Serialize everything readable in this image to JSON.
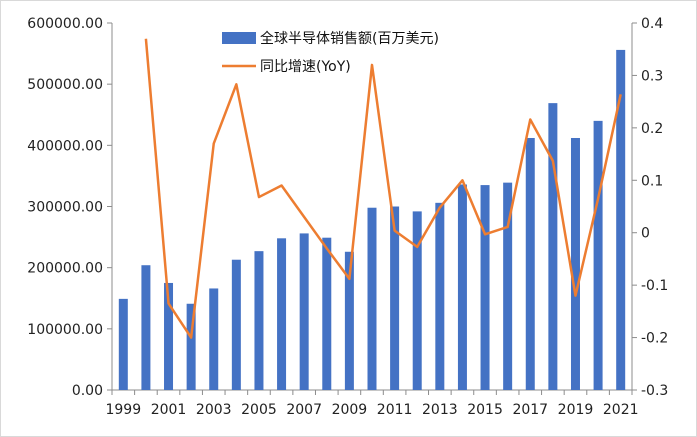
{
  "chart_data": {
    "type": "bar",
    "x": [
      1999,
      2000,
      2001,
      2002,
      2003,
      2004,
      2005,
      2006,
      2007,
      2008,
      2009,
      2010,
      2011,
      2012,
      2013,
      2014,
      2015,
      2016,
      2017,
      2018,
      2019,
      2020,
      2021
    ],
    "x_tick_labels": [
      "1999",
      "2001",
      "2003",
      "2005",
      "2007",
      "2009",
      "2011",
      "2013",
      "2015",
      "2017",
      "2019",
      "2021"
    ],
    "series": [
      {
        "name": "全球半导体销售额(百万美元)",
        "type": "bar",
        "axis": "left",
        "color": "#4472c4",
        "values": [
          149000,
          204000,
          175000,
          141000,
          166000,
          213000,
          227000,
          248000,
          256000,
          249000,
          226000,
          298000,
          300000,
          292000,
          306000,
          336000,
          335000,
          339000,
          412000,
          469000,
          412000,
          440000,
          556000
        ]
      },
      {
        "name": "同比增速(YoY)",
        "type": "line",
        "axis": "right",
        "color": "#ed7d31",
        "values": [
          null,
          0.37,
          -0.135,
          -0.2,
          0.17,
          0.283,
          0.068,
          0.09,
          0.03,
          -0.03,
          -0.088,
          0.32,
          0.004,
          -0.027,
          0.048,
          0.1,
          -0.003,
          0.011,
          0.216,
          0.137,
          -0.12,
          0.065,
          0.264
        ]
      }
    ],
    "y_left": {
      "range": [
        0,
        600000
      ],
      "tick_labels": [
        "600000.00",
        "500000.00",
        "400000.00",
        "300000.00",
        "200000.00",
        "100000.00",
        "0.00"
      ]
    },
    "y_right": {
      "range": [
        -0.3,
        0.4
      ],
      "tick_labels": [
        "0.4",
        "0.3",
        "0.2",
        "0.1",
        "0",
        "-0.1",
        "-0.2",
        "-0.3"
      ]
    },
    "grid": false,
    "legend_position": "top-center"
  }
}
